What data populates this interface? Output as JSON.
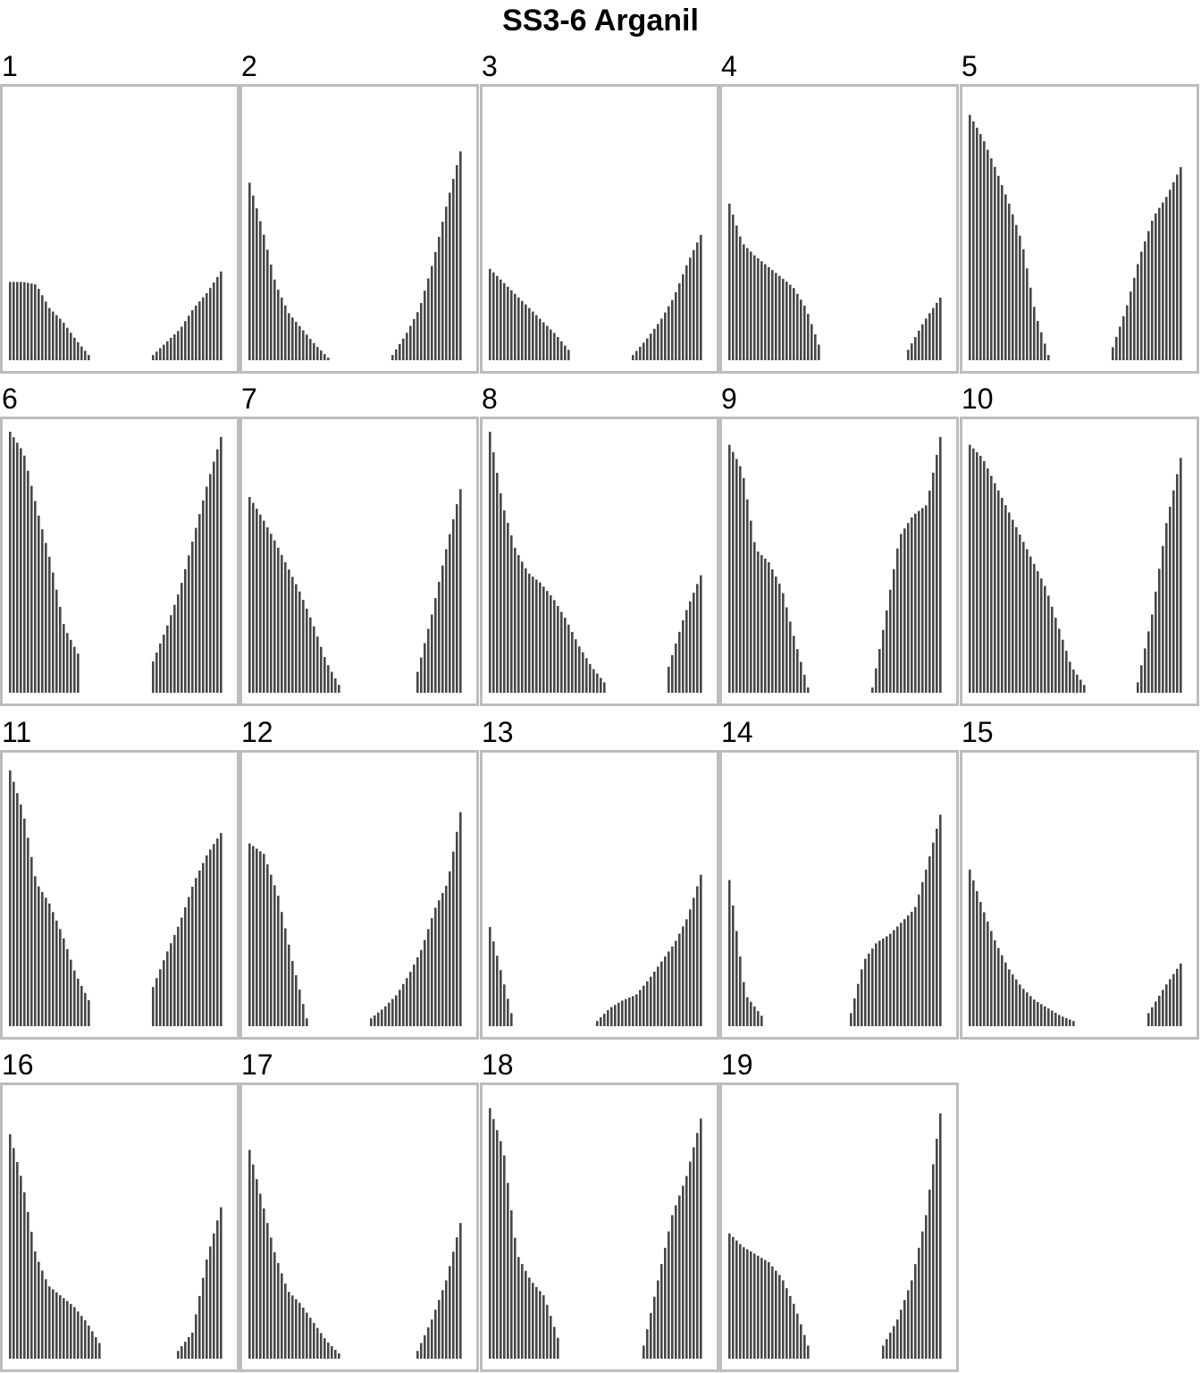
{
  "chart_data": {
    "type": "bar",
    "title": "SS3-6 Arganil",
    "xlabel": "",
    "ylabel": "",
    "ylim": [
      0,
      1
    ],
    "grid": false,
    "legend": "none",
    "bar_color": "#474747",
    "border_color": "#bdbdbd",
    "panels": [
      {
        "label": "1",
        "left": [
          0.3,
          0.3,
          0.29,
          0.2,
          0.15,
          0.08,
          0.02
        ],
        "right": [
          0.02,
          0.07,
          0.12,
          0.2,
          0.26,
          0.34
        ]
      },
      {
        "label": "2",
        "left": [
          0.68,
          0.5,
          0.29,
          0.18,
          0.12,
          0.06,
          0.01
        ],
        "right": [
          0.02,
          0.1,
          0.2,
          0.38,
          0.6,
          0.8
        ]
      },
      {
        "label": "3",
        "left": [
          0.35,
          0.3,
          0.25,
          0.2,
          0.15,
          0.1,
          0.04
        ],
        "right": [
          0.02,
          0.08,
          0.15,
          0.24,
          0.37,
          0.48
        ]
      },
      {
        "label": "4",
        "left": [
          0.6,
          0.45,
          0.4,
          0.36,
          0.32,
          0.28,
          0.2,
          0.06
        ],
        "right": [
          0.04,
          0.15,
          0.24
        ]
      },
      {
        "label": "5",
        "left": [
          0.94,
          0.85,
          0.73,
          0.6,
          0.45,
          0.18,
          0.02
        ],
        "right": [
          0.05,
          0.2,
          0.4,
          0.55,
          0.63,
          0.74
        ]
      },
      {
        "label": "6",
        "left": [
          1.0,
          0.92,
          0.7,
          0.5,
          0.25,
          0.15
        ],
        "right": [
          0.12,
          0.25,
          0.4,
          0.6,
          0.8,
          0.98
        ]
      },
      {
        "label": "7",
        "left": [
          0.75,
          0.67,
          0.58,
          0.48,
          0.38,
          0.26,
          0.12,
          0.03
        ],
        "right": [
          0.08,
          0.3,
          0.55,
          0.78
        ]
      },
      {
        "label": "8",
        "left": [
          1.0,
          0.72,
          0.55,
          0.46,
          0.42,
          0.36,
          0.28,
          0.18,
          0.1,
          0.04
        ],
        "right": [
          0.1,
          0.3,
          0.45
        ]
      },
      {
        "label": "9",
        "left": [
          0.95,
          0.85,
          0.55,
          0.5,
          0.4,
          0.2,
          0.02
        ],
        "right": [
          0.02,
          0.3,
          0.6,
          0.68,
          0.72,
          0.98
        ]
      },
      {
        "label": "10",
        "left": [
          0.95,
          0.9,
          0.8,
          0.7,
          0.6,
          0.5,
          0.4,
          0.25,
          0.1,
          0.03
        ],
        "right": [
          0.04,
          0.3,
          0.65,
          0.9
        ]
      },
      {
        "label": "11",
        "left": [
          0.98,
          0.82,
          0.55,
          0.47,
          0.35,
          0.2,
          0.1
        ],
        "right": [
          0.15,
          0.28,
          0.4,
          0.55,
          0.66,
          0.74
        ]
      },
      {
        "label": "12",
        "left": [
          0.7,
          0.66,
          0.5,
          0.25,
          0.03
        ],
        "right": [
          0.03,
          0.07,
          0.12,
          0.2,
          0.3,
          0.45,
          0.55,
          0.82
        ]
      },
      {
        "label": "13",
        "left": [
          0.38,
          0.05
        ],
        "right": [
          0.02,
          0.07,
          0.1,
          0.12,
          0.18,
          0.25,
          0.32,
          0.42,
          0.58
        ]
      },
      {
        "label": "14",
        "left": [
          0.56,
          0.12,
          0.04
        ],
        "right": [
          0.05,
          0.25,
          0.32,
          0.35,
          0.4,
          0.45,
          0.62,
          0.81
        ]
      },
      {
        "label": "15",
        "left": [
          0.6,
          0.45,
          0.32,
          0.22,
          0.15,
          0.1,
          0.07,
          0.04,
          0.02
        ],
        "right": [
          0.05,
          0.15,
          0.24
        ]
      },
      {
        "label": "16",
        "left": [
          0.86,
          0.67,
          0.4,
          0.28,
          0.24,
          0.2,
          0.14,
          0.06
        ],
        "right": [
          0.03,
          0.1,
          0.38,
          0.58
        ]
      },
      {
        "label": "17",
        "left": [
          0.8,
          0.6,
          0.4,
          0.26,
          0.21,
          0.14,
          0.07,
          0.02
        ],
        "right": [
          0.03,
          0.15,
          0.3,
          0.52
        ]
      },
      {
        "label": "18",
        "left": [
          0.96,
          0.8,
          0.4,
          0.3,
          0.24,
          0.08
        ],
        "right": [
          0.05,
          0.3,
          0.55,
          0.7,
          0.92
        ]
      },
      {
        "label": "19",
        "left": [
          0.48,
          0.43,
          0.4,
          0.37,
          0.31,
          0.2,
          0.05
        ],
        "right": [
          0.05,
          0.15,
          0.3,
          0.55,
          0.94
        ]
      }
    ]
  }
}
